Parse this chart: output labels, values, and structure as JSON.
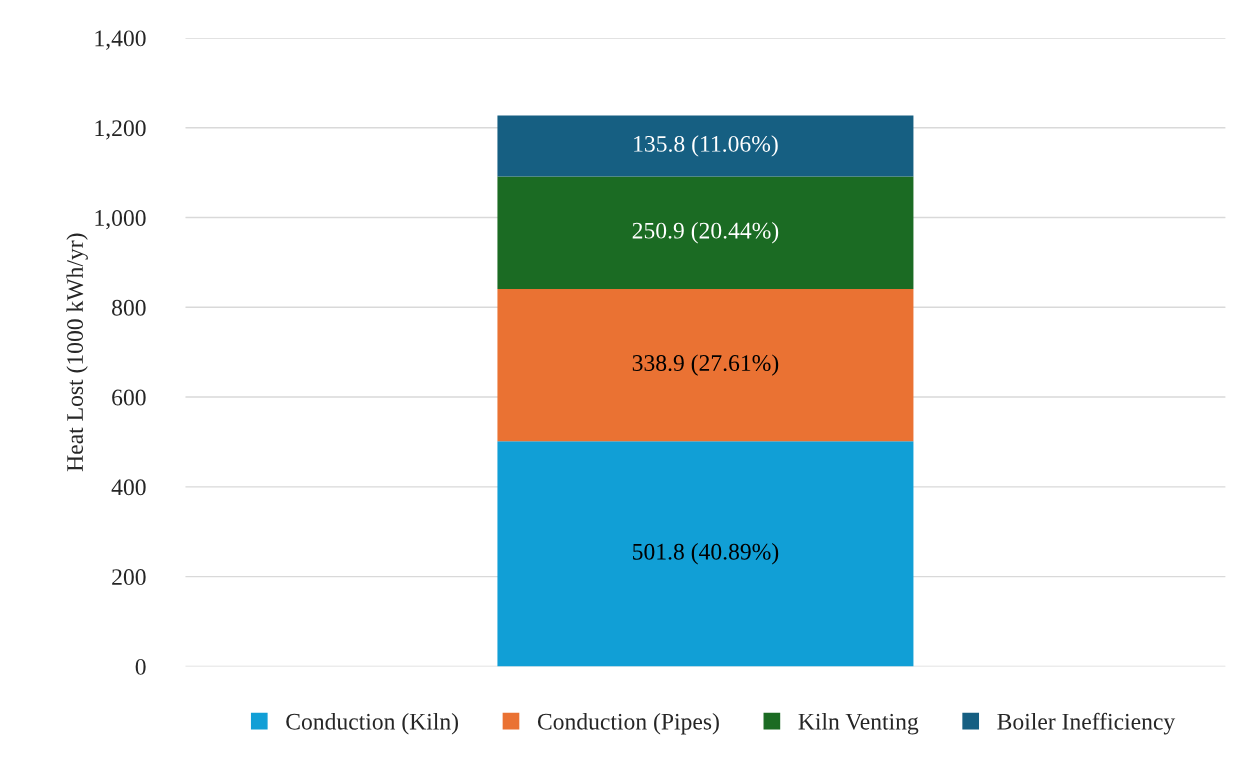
{
  "chart_data": {
    "type": "bar",
    "stacked": true,
    "ylabel": "Heat Lost (1000 kWh/yr)",
    "categories": [
      null
    ],
    "series": [
      {
        "name": "Conduction (Kiln)",
        "color": "#119fd6",
        "values": [
          501.8
        ],
        "value_labels": [
          "501.8 (40.89%)"
        ]
      },
      {
        "name": "Conduction (Pipes)",
        "color": "#ea7233",
        "values": [
          338.9
        ],
        "value_labels": [
          "338.9 (27.61%)"
        ]
      },
      {
        "name": "Kiln Venting",
        "color": "#1b6b23",
        "values": [
          250.9
        ],
        "value_labels": [
          "250.9 (20.44%)"
        ]
      },
      {
        "name": "Boiler Inefficiency",
        "color": "#165f82",
        "values": [
          135.8
        ],
        "value_labels": [
          "135.8 (11.06%)"
        ]
      }
    ],
    "ylim": [
      0,
      1400
    ],
    "yticks": [
      {
        "value": 0,
        "label": "0"
      },
      {
        "value": 200,
        "label": "200"
      },
      {
        "value": 400,
        "label": "400"
      },
      {
        "value": 600,
        "label": "600"
      },
      {
        "value": 800,
        "label": "800"
      },
      {
        "value": 1000,
        "label": "1,000"
      },
      {
        "value": 1200,
        "label": "1,200"
      },
      {
        "value": 1400,
        "label": "1,400"
      }
    ],
    "grid": "y",
    "legend": "bottom"
  }
}
